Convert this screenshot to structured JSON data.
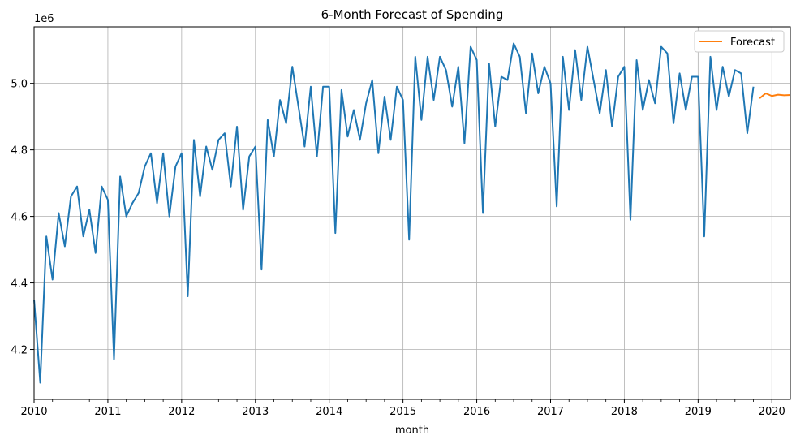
{
  "chart_data": {
    "type": "line",
    "title": "6-Month Forecast of Spending",
    "xlabel": "month",
    "ylabel": "",
    "y_offset_label": "1e6",
    "x_tick_labels": [
      "2010",
      "2011",
      "2012",
      "2013",
      "2014",
      "2015",
      "2016",
      "2017",
      "2018",
      "2019",
      "2020"
    ],
    "y_tick_labels": [
      "4.2",
      "4.4",
      "4.6",
      "4.8",
      "5.0"
    ],
    "xlim": [
      "2010-01",
      "2020-04"
    ],
    "ylim": [
      4.05,
      5.17
    ],
    "grid": true,
    "legend_position": "top-right",
    "colors": {
      "history": "#1f77b4",
      "forecast": "#ff7f0e"
    },
    "series": [
      {
        "key": "history",
        "start": "2010-01",
        "values": [
          4.35,
          4.1,
          4.54,
          4.41,
          4.61,
          4.51,
          4.66,
          4.69,
          4.54,
          4.62,
          4.49,
          4.69,
          4.65,
          4.17,
          4.72,
          4.6,
          4.64,
          4.67,
          4.75,
          4.79,
          4.64,
          4.79,
          4.6,
          4.75,
          4.79,
          4.36,
          4.83,
          4.66,
          4.81,
          4.74,
          4.83,
          4.85,
          4.69,
          4.87,
          4.62,
          4.78,
          4.81,
          4.44,
          4.89,
          4.78,
          4.95,
          4.88,
          5.05,
          4.93,
          4.81,
          4.99,
          4.78,
          4.99,
          4.99,
          4.55,
          4.98,
          4.84,
          4.92,
          4.83,
          4.94,
          5.01,
          4.79,
          4.96,
          4.83,
          4.99,
          4.95,
          4.53,
          5.08,
          4.89,
          5.08,
          4.95,
          5.08,
          5.04,
          4.93,
          5.05,
          4.82,
          5.11,
          5.07,
          4.61,
          5.06,
          4.87,
          5.02,
          5.01,
          5.12,
          5.08,
          4.91,
          5.09,
          4.97,
          5.05,
          5.0,
          4.63,
          5.08,
          4.92,
          5.1,
          4.95,
          5.11,
          5.01,
          4.91,
          5.04,
          4.87,
          5.02,
          5.05,
          4.59,
          5.07,
          4.92,
          5.01,
          4.94,
          5.11,
          5.09,
          4.88,
          5.03,
          4.92,
          5.02,
          5.02,
          4.54,
          5.08,
          4.92,
          5.05,
          4.96,
          5.04,
          5.03,
          4.85,
          4.99
        ]
      },
      {
        "key": "forecast",
        "name": "Forecast",
        "start": "2019-11",
        "values": [
          4.955,
          4.97,
          4.962,
          4.966,
          4.964,
          4.965
        ]
      }
    ]
  }
}
